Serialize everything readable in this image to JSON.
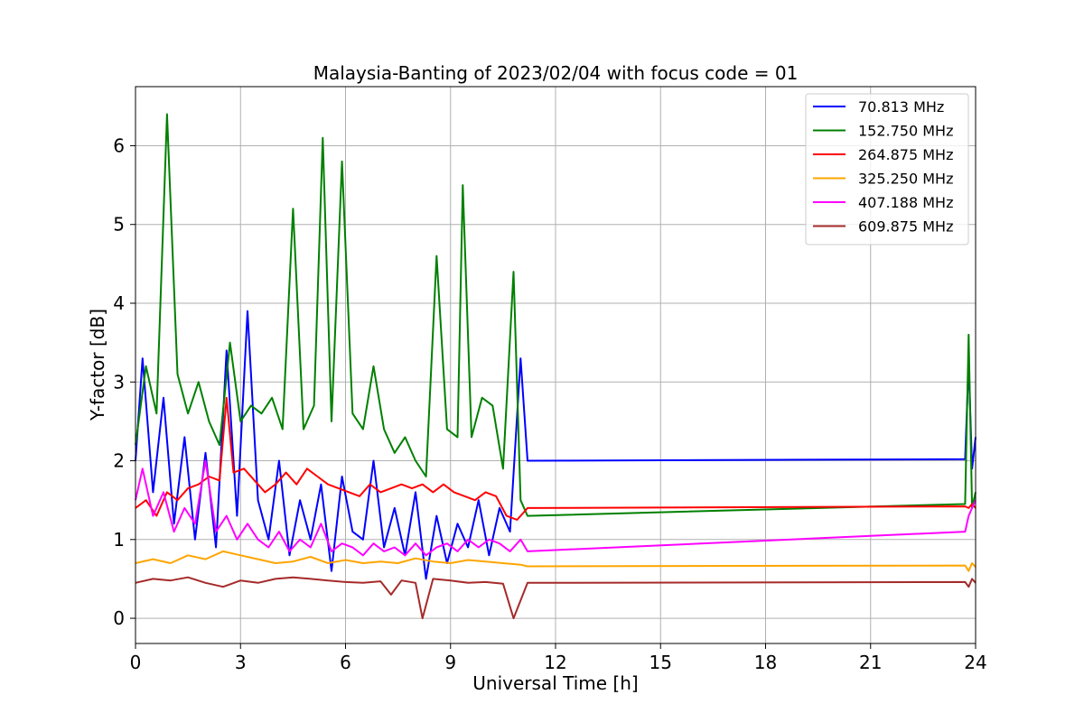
{
  "chart_data": {
    "type": "line",
    "title": "Malaysia-Banting of 2023/02/04 with focus code = 01",
    "xlabel": "Universal Time [h]",
    "ylabel": "Y-factor [dB]",
    "xlim": [
      0,
      24
    ],
    "ylim": [
      -0.32,
      6.75
    ],
    "xticks": [
      0,
      3,
      6,
      9,
      12,
      15,
      18,
      21,
      24
    ],
    "yticks": [
      0,
      1,
      2,
      3,
      4,
      5,
      6
    ],
    "grid": true,
    "legend_position": "top-right",
    "series": [
      {
        "name": " 70.813 MHz",
        "color": "#0000ff",
        "x": [
          0,
          0.2,
          0.5,
          0.8,
          1.1,
          1.4,
          1.7,
          2.0,
          2.3,
          2.6,
          2.9,
          3.2,
          3.5,
          3.8,
          4.1,
          4.4,
          4.7,
          5.0,
          5.3,
          5.6,
          5.9,
          6.2,
          6.5,
          6.8,
          7.1,
          7.4,
          7.7,
          8.0,
          8.3,
          8.6,
          8.9,
          9.2,
          9.5,
          9.8,
          10.1,
          10.4,
          10.7,
          11.0,
          11.2,
          23.7,
          23.8,
          23.9,
          24.0
        ],
        "values": [
          2.0,
          3.3,
          1.6,
          2.8,
          1.2,
          2.3,
          1.0,
          2.1,
          0.9,
          3.4,
          1.3,
          3.9,
          1.5,
          1.0,
          2.0,
          0.8,
          1.5,
          1.0,
          1.7,
          0.6,
          1.8,
          1.1,
          1.0,
          2.0,
          0.9,
          1.4,
          0.8,
          1.6,
          0.5,
          1.3,
          0.7,
          1.2,
          0.9,
          1.5,
          0.8,
          1.4,
          1.1,
          3.3,
          2.0,
          2.02,
          3.25,
          1.9,
          2.3
        ]
      },
      {
        "name": "152.750 MHz",
        "color": "#008000",
        "x": [
          0,
          0.3,
          0.6,
          0.9,
          1.2,
          1.5,
          1.8,
          2.1,
          2.4,
          2.7,
          3.0,
          3.3,
          3.6,
          3.9,
          4.2,
          4.5,
          4.8,
          5.1,
          5.35,
          5.6,
          5.9,
          6.2,
          6.5,
          6.8,
          7.1,
          7.4,
          7.7,
          8.0,
          8.3,
          8.6,
          8.9,
          9.2,
          9.35,
          9.6,
          9.9,
          10.2,
          10.5,
          10.8,
          11.0,
          11.2,
          23.7,
          23.8,
          23.9,
          24.0
        ],
        "values": [
          2.2,
          3.2,
          2.6,
          6.4,
          3.1,
          2.6,
          3.0,
          2.5,
          2.2,
          3.5,
          2.5,
          2.7,
          2.6,
          2.8,
          2.4,
          5.2,
          2.4,
          2.7,
          6.1,
          2.5,
          5.8,
          2.6,
          2.4,
          3.2,
          2.4,
          2.1,
          2.3,
          2.0,
          1.8,
          4.6,
          2.4,
          2.3,
          5.5,
          2.3,
          2.8,
          2.7,
          1.9,
          4.4,
          1.5,
          1.3,
          1.45,
          3.6,
          1.4,
          1.6
        ]
      },
      {
        "name": "264.875 MHz",
        "color": "#ff0000",
        "x": [
          0,
          0.3,
          0.6,
          0.9,
          1.2,
          1.5,
          1.8,
          2.1,
          2.4,
          2.6,
          2.8,
          3.1,
          3.4,
          3.7,
          4.0,
          4.3,
          4.6,
          4.9,
          5.2,
          5.5,
          5.8,
          6.1,
          6.4,
          6.7,
          7.0,
          7.3,
          7.6,
          7.9,
          8.2,
          8.5,
          8.8,
          9.1,
          9.4,
          9.7,
          10.0,
          10.3,
          10.6,
          10.9,
          11.2,
          23.7,
          23.8,
          23.9,
          24.0
        ],
        "values": [
          1.4,
          1.5,
          1.3,
          1.6,
          1.5,
          1.65,
          1.7,
          1.8,
          1.75,
          2.8,
          1.85,
          1.9,
          1.75,
          1.6,
          1.7,
          1.85,
          1.7,
          1.9,
          1.8,
          1.7,
          1.65,
          1.6,
          1.55,
          1.7,
          1.6,
          1.65,
          1.7,
          1.65,
          1.7,
          1.6,
          1.7,
          1.6,
          1.55,
          1.5,
          1.6,
          1.55,
          1.3,
          1.25,
          1.4,
          1.42,
          1.4,
          1.45,
          1.4
        ]
      },
      {
        "name": "325.250 MHz",
        "color": "#ffa500",
        "x": [
          0,
          0.5,
          1.0,
          1.5,
          2.0,
          2.5,
          3.0,
          3.5,
          4.0,
          4.5,
          5.0,
          5.5,
          6.0,
          6.5,
          7.0,
          7.5,
          8.0,
          8.5,
          9.0,
          9.5,
          10.0,
          10.5,
          11.0,
          11.2,
          23.7,
          23.8,
          23.9,
          24.0
        ],
        "values": [
          0.7,
          0.75,
          0.7,
          0.8,
          0.75,
          0.85,
          0.8,
          0.75,
          0.7,
          0.72,
          0.78,
          0.7,
          0.74,
          0.7,
          0.72,
          0.7,
          0.76,
          0.72,
          0.7,
          0.74,
          0.72,
          0.7,
          0.68,
          0.66,
          0.67,
          0.6,
          0.7,
          0.65
        ]
      },
      {
        "name": "407.188 MHz",
        "color": "#ff00ff",
        "x": [
          0,
          0.2,
          0.5,
          0.8,
          1.1,
          1.4,
          1.7,
          2.0,
          2.3,
          2.6,
          2.9,
          3.2,
          3.5,
          3.8,
          4.1,
          4.4,
          4.7,
          5.0,
          5.3,
          5.6,
          5.9,
          6.2,
          6.5,
          6.8,
          7.1,
          7.4,
          7.7,
          8.0,
          8.3,
          8.6,
          8.9,
          9.2,
          9.5,
          9.8,
          10.1,
          10.4,
          10.7,
          11.0,
          11.2,
          23.7,
          23.8,
          23.9,
          24.0
        ],
        "values": [
          1.5,
          1.9,
          1.3,
          1.6,
          1.1,
          1.4,
          1.2,
          2.0,
          1.1,
          1.3,
          1.0,
          1.2,
          1.0,
          0.9,
          1.1,
          0.85,
          1.0,
          0.9,
          1.2,
          0.85,
          0.95,
          0.9,
          0.8,
          0.95,
          0.85,
          0.9,
          0.8,
          0.95,
          0.8,
          0.9,
          0.95,
          0.85,
          1.0,
          0.9,
          1.0,
          0.95,
          0.85,
          1.0,
          0.85,
          1.1,
          1.3,
          1.4,
          1.5
        ]
      },
      {
        "name": "609.875 MHz",
        "color": "#a52a2a",
        "x": [
          0,
          0.5,
          1.0,
          1.5,
          2.0,
          2.5,
          3.0,
          3.5,
          4.0,
          4.5,
          5.0,
          5.5,
          6.0,
          6.5,
          7.0,
          7.3,
          7.6,
          8.0,
          8.2,
          8.5,
          9.0,
          9.5,
          10.0,
          10.5,
          10.8,
          11.2,
          23.7,
          23.8,
          23.9,
          24.0
        ],
        "values": [
          0.45,
          0.5,
          0.48,
          0.52,
          0.45,
          0.4,
          0.48,
          0.45,
          0.5,
          0.52,
          0.5,
          0.48,
          0.46,
          0.45,
          0.47,
          0.3,
          0.48,
          0.45,
          0.0,
          0.5,
          0.48,
          0.45,
          0.46,
          0.44,
          0.0,
          0.45,
          0.46,
          0.4,
          0.5,
          0.45
        ]
      }
    ]
  }
}
